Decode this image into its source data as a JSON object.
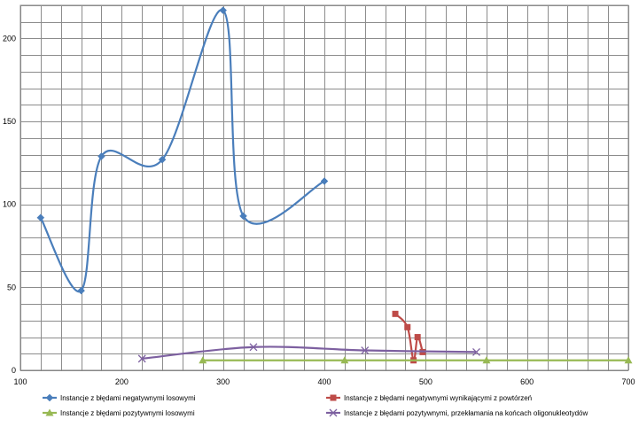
{
  "chart_data": {
    "type": "scatter",
    "title": "",
    "xlabel": "",
    "ylabel": "",
    "xlim": [
      100,
      700
    ],
    "ylim": [
      0,
      220
    ],
    "x_ticks": [
      100,
      200,
      300,
      400,
      500,
      600,
      700
    ],
    "y_ticks": [
      0,
      50,
      100,
      150,
      200
    ],
    "x_grid_step": 20,
    "y_grid_step": 10,
    "grid": true,
    "smooth_lines": true,
    "legend_position": "bottom",
    "series": [
      {
        "name": "Instancje z błędami negatywnymi losowymi",
        "color": "#4a7ebb",
        "marker": "diamond",
        "points": [
          [
            120,
            92
          ],
          [
            160,
            48
          ],
          [
            180,
            129
          ],
          [
            240,
            127
          ],
          [
            300,
            217
          ],
          [
            320,
            93
          ],
          [
            400,
            114
          ]
        ]
      },
      {
        "name": "Instancje z błędami negatywnymi wynikającymi z powtórzeń",
        "color": "#be4b48",
        "marker": "square",
        "points": [
          [
            470,
            34
          ],
          [
            482,
            26
          ],
          [
            488,
            6
          ],
          [
            492,
            20
          ],
          [
            497,
            11
          ]
        ]
      },
      {
        "name": "Instancje z błędami pozytywnymi losowymi",
        "color": "#98b954",
        "marker": "triangle",
        "points": [
          [
            280,
            6
          ],
          [
            420,
            6
          ],
          [
            560,
            6
          ],
          [
            700,
            6
          ]
        ]
      },
      {
        "name": "Instancje z błędami pozytywnymi, przekłamania na końcach oligonukleotydów",
        "color": "#7d60a0",
        "marker": "x",
        "points": [
          [
            220,
            7
          ],
          [
            330,
            14
          ],
          [
            440,
            12
          ],
          [
            550,
            11
          ]
        ]
      }
    ]
  }
}
